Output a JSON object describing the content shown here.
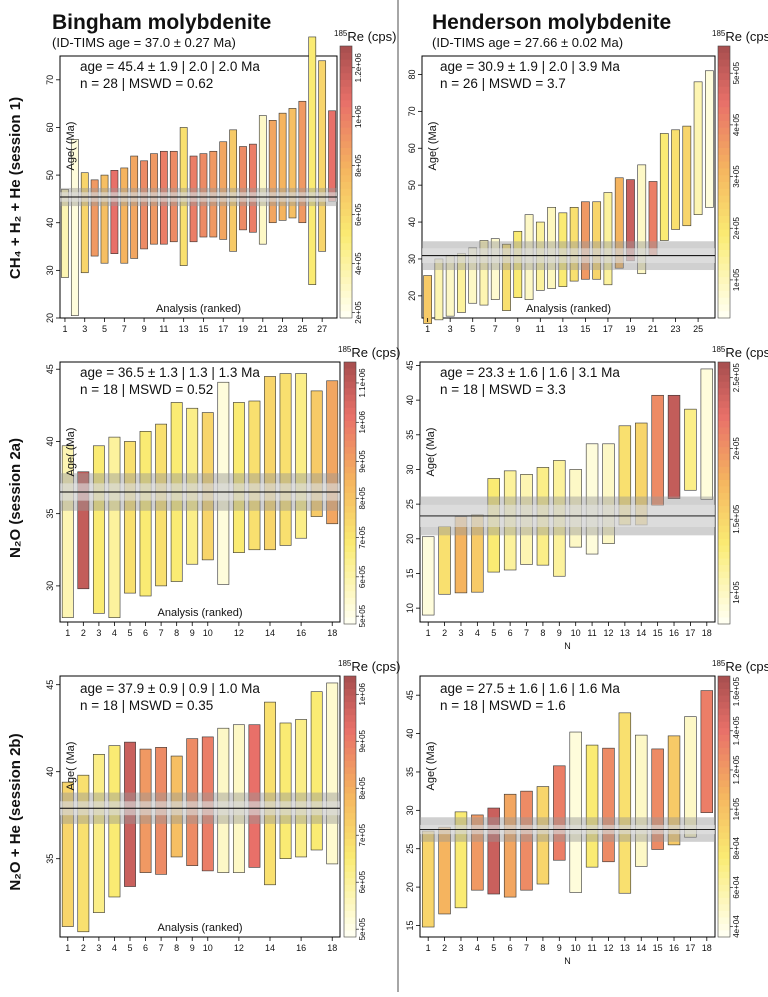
{
  "columns": [
    {
      "title": "Bingham molybdenite",
      "subtitle": "(ID-TIMS age = 37.0 ± 0.27 Ma)"
    },
    {
      "title": "Henderson molybdenite",
      "subtitle": "(ID-TIMS age = 27.66 ± 0.02 Ma)"
    }
  ],
  "rows": [
    "CH₄ + H₂ + He (session 1)",
    "N₂O (session 2a)",
    "N₂O + He (session 2b)"
  ],
  "chart_data": [
    {
      "type": "bar",
      "id": "bingham-session1",
      "ylabel": "Age( (Ma)",
      "xlabel": "Analysis (ranked)",
      "ylim": [
        20,
        75
      ],
      "yticks": [
        20,
        30,
        40,
        50,
        60,
        70
      ],
      "xticks": [
        1,
        3,
        5,
        7,
        9,
        11,
        13,
        15,
        17,
        19,
        21,
        23,
        25,
        27
      ],
      "stats": [
        "age = 45.4 ± 1.9 | 2.0 | 2.0 Ma",
        "n = 28 | MSWD = 0.62"
      ],
      "weighted_mean": 45.4,
      "band_inner": [
        44.4,
        46.4
      ],
      "band_outer": [
        43.5,
        47.3
      ],
      "colorbar": {
        "title": "Re (cps)",
        "superscript": "185",
        "ticks": [
          "2e+05",
          "4e+05",
          "6e+05",
          "8e+05",
          "1e+06",
          "1.2e+06"
        ],
        "tick_fracs": [
          0.02,
          0.2,
          0.38,
          0.56,
          0.74,
          0.92
        ]
      },
      "bars": [
        {
          "low": 28.5,
          "high": 47.0,
          "color": 0.15
        },
        {
          "low": 20.5,
          "high": 57.5,
          "color": 0.05
        },
        {
          "low": 29.5,
          "high": 50.5,
          "color": 0.4
        },
        {
          "low": 33.0,
          "high": 49.0,
          "color": 0.65
        },
        {
          "low": 31.5,
          "high": 50.0,
          "color": 0.5
        },
        {
          "low": 33.5,
          "high": 51.0,
          "color": 0.8
        },
        {
          "low": 31.5,
          "high": 51.5,
          "color": 0.55
        },
        {
          "low": 32.5,
          "high": 54.0,
          "color": 0.6
        },
        {
          "low": 34.5,
          "high": 53.0,
          "color": 0.7
        },
        {
          "low": 35.5,
          "high": 54.5,
          "color": 0.65
        },
        {
          "low": 35.5,
          "high": 55.0,
          "color": 0.75
        },
        {
          "low": 36.0,
          "high": 55.0,
          "color": 0.7
        },
        {
          "low": 31.0,
          "high": 60.0,
          "color": 0.35
        },
        {
          "low": 36.0,
          "high": 54.0,
          "color": 0.75
        },
        {
          "low": 37.0,
          "high": 54.5,
          "color": 0.7
        },
        {
          "low": 37.0,
          "high": 55.0,
          "color": 0.65
        },
        {
          "low": 36.5,
          "high": 57.0,
          "color": 0.6
        },
        {
          "low": 34.0,
          "high": 59.5,
          "color": 0.45
        },
        {
          "low": 38.5,
          "high": 56.0,
          "color": 0.7
        },
        {
          "low": 38.0,
          "high": 56.5,
          "color": 0.75
        },
        {
          "low": 35.5,
          "high": 62.5,
          "color": 0.1
        },
        {
          "low": 40.0,
          "high": 61.5,
          "color": 0.6
        },
        {
          "low": 40.5,
          "high": 63.0,
          "color": 0.55
        },
        {
          "low": 41.0,
          "high": 64.0,
          "color": 0.5
        },
        {
          "low": 40.0,
          "high": 65.5,
          "color": 0.65
        },
        {
          "low": 27.0,
          "high": 79.0,
          "color": 0.3
        },
        {
          "low": 34.0,
          "high": 74.0,
          "color": 0.4
        },
        {
          "low": 44.5,
          "high": 63.5,
          "color": 0.8
        }
      ]
    },
    {
      "type": "bar",
      "id": "henderson-session1",
      "ylabel": "Age( (Ma)",
      "xlabel": "Analysis (ranked)",
      "ylim": [
        14,
        85
      ],
      "yticks": [
        20,
        30,
        40,
        50,
        60,
        70,
        80
      ],
      "xticks": [
        1,
        3,
        5,
        7,
        9,
        11,
        13,
        15,
        17,
        19,
        21,
        23,
        25
      ],
      "stats": [
        "age = 30.9 ± 1.9 | 2.0 | 3.9 Ma",
        "n = 26 | MSWD = 3.7"
      ],
      "weighted_mean": 30.9,
      "band_inner": [
        28.9,
        32.9
      ],
      "band_outer": [
        27.0,
        34.8
      ],
      "colorbar": {
        "title": "Re (cps)",
        "superscript": "185",
        "ticks": [
          "1e+05",
          "2e+05",
          "3e+05",
          "4e+05",
          "5e+05"
        ],
        "tick_fracs": [
          0.14,
          0.33,
          0.52,
          0.71,
          0.9
        ]
      },
      "bars": [
        {
          "low": 12.5,
          "high": 25.5,
          "color": 0.45
        },
        {
          "low": 13.5,
          "high": 30.0,
          "color": 0.15
        },
        {
          "low": 14.5,
          "high": 31.0,
          "color": 0.1
        },
        {
          "low": 15.5,
          "high": 31.5,
          "color": 0.2
        },
        {
          "low": 18.0,
          "high": 33.0,
          "color": 0.1
        },
        {
          "low": 17.5,
          "high": 35.0,
          "color": 0.15
        },
        {
          "low": 19.0,
          "high": 35.5,
          "color": 0.08
        },
        {
          "low": 16.0,
          "high": 34.0,
          "color": 0.35
        },
        {
          "low": 19.5,
          "high": 37.5,
          "color": 0.3
        },
        {
          "low": 19.0,
          "high": 42.0,
          "color": 0.1
        },
        {
          "low": 21.5,
          "high": 40.0,
          "color": 0.2
        },
        {
          "low": 22.0,
          "high": 44.0,
          "color": 0.12
        },
        {
          "low": 22.5,
          "high": 42.5,
          "color": 0.3
        },
        {
          "low": 24.0,
          "high": 44.0,
          "color": 0.35
        },
        {
          "low": 24.5,
          "high": 45.5,
          "color": 0.65
        },
        {
          "low": 24.5,
          "high": 45.5,
          "color": 0.4
        },
        {
          "low": 23.0,
          "high": 48.0,
          "color": 0.2
        },
        {
          "low": 27.5,
          "high": 52.0,
          "color": 0.55
        },
        {
          "low": 29.5,
          "high": 51.5,
          "color": 0.9
        },
        {
          "low": 26.0,
          "high": 55.5,
          "color": 0.1
        },
        {
          "low": 31.0,
          "high": 51.0,
          "color": 0.75
        },
        {
          "low": 35.0,
          "high": 64.0,
          "color": 0.3
        },
        {
          "low": 38.0,
          "high": 65.0,
          "color": 0.35
        },
        {
          "low": 39.0,
          "high": 66.0,
          "color": 0.4
        },
        {
          "low": 42.0,
          "high": 78.0,
          "color": 0.15
        },
        {
          "low": 44.0,
          "high": 81.0,
          "color": 0.05
        }
      ]
    },
    {
      "type": "bar",
      "id": "bingham-session2a",
      "ylabel": "Age( (Ma)",
      "xlabel": "Analysis (ranked)",
      "ylim": [
        27.5,
        45.5
      ],
      "yticks": [
        30,
        35,
        40,
        45
      ],
      "xticks": [
        1,
        2,
        3,
        4,
        5,
        6,
        7,
        8,
        9,
        10,
        12,
        14,
        16,
        18
      ],
      "stats": [
        "age = 36.5 ± 1.3 | 1.3 | 1.3 Ma",
        "n = 18 | MSWD = 0.52"
      ],
      "weighted_mean": 36.5,
      "band_inner": [
        35.9,
        37.1
      ],
      "band_outer": [
        35.2,
        37.8
      ],
      "colorbar": {
        "title": "Re (cps)",
        "superscript": "185",
        "ticks": [
          "5e+05",
          "6e+05",
          "7e+05",
          "8e+05",
          "9e+05",
          "1e+06",
          "1.1e+06"
        ],
        "tick_fracs": [
          0.03,
          0.18,
          0.33,
          0.48,
          0.62,
          0.77,
          0.92
        ]
      },
      "bars": [
        {
          "low": 27.8,
          "high": 39.7,
          "color": 0.15
        },
        {
          "low": 29.8,
          "high": 37.9,
          "color": 0.92
        },
        {
          "low": 28.1,
          "high": 39.7,
          "color": 0.3
        },
        {
          "low": 27.8,
          "high": 40.3,
          "color": 0.2
        },
        {
          "low": 29.5,
          "high": 40.0,
          "color": 0.35
        },
        {
          "low": 29.3,
          "high": 40.7,
          "color": 0.3
        },
        {
          "low": 30.0,
          "high": 41.2,
          "color": 0.35
        },
        {
          "low": 30.3,
          "high": 42.7,
          "color": 0.3
        },
        {
          "low": 31.5,
          "high": 42.3,
          "color": 0.25
        },
        {
          "low": 31.8,
          "high": 42.0,
          "color": 0.4
        },
        {
          "low": 30.1,
          "high": 44.1,
          "color": 0.05
        },
        {
          "low": 32.3,
          "high": 42.7,
          "color": 0.3
        },
        {
          "low": 32.5,
          "high": 42.8,
          "color": 0.35
        },
        {
          "low": 32.5,
          "high": 44.5,
          "color": 0.4
        },
        {
          "low": 32.8,
          "high": 44.7,
          "color": 0.35
        },
        {
          "low": 33.3,
          "high": 44.7,
          "color": 0.25
        },
        {
          "low": 34.8,
          "high": 43.5,
          "color": 0.45
        },
        {
          "low": 34.3,
          "high": 44.2,
          "color": 0.6
        }
      ]
    },
    {
      "type": "bar",
      "id": "henderson-session2a",
      "ylabel": "Age( (Ma)",
      "xlabel": "N",
      "ylim": [
        8,
        45.5
      ],
      "yticks": [
        10,
        15,
        20,
        25,
        30,
        35,
        40,
        45
      ],
      "xticks": [
        1,
        2,
        3,
        4,
        5,
        6,
        7,
        8,
        9,
        10,
        11,
        12,
        13,
        14,
        15,
        16,
        17,
        18
      ],
      "stats": [
        "age = 23.3 ± 1.6 | 1.6 | 3.1 Ma",
        "n = 18 | MSWD = 3.3"
      ],
      "weighted_mean": 23.3,
      "band_inner": [
        21.7,
        24.9
      ],
      "band_outer": [
        20.5,
        26.1
      ],
      "colorbar": {
        "title": "Re (cps)",
        "superscript": "185",
        "ticks": [
          "1e+05",
          "1.5e+05",
          "2e+05",
          "2.5e+05"
        ],
        "tick_fracs": [
          0.12,
          0.4,
          0.67,
          0.94
        ]
      },
      "bars": [
        {
          "low": 9.0,
          "high": 20.3,
          "color": 0.05
        },
        {
          "low": 12.0,
          "high": 21.8,
          "color": 0.35
        },
        {
          "low": 12.2,
          "high": 23.2,
          "color": 0.55
        },
        {
          "low": 12.3,
          "high": 23.5,
          "color": 0.45
        },
        {
          "low": 15.2,
          "high": 28.7,
          "color": 0.3
        },
        {
          "low": 15.5,
          "high": 29.8,
          "color": 0.2
        },
        {
          "low": 16.3,
          "high": 29.3,
          "color": 0.15
        },
        {
          "low": 16.2,
          "high": 30.3,
          "color": 0.25
        },
        {
          "low": 14.6,
          "high": 31.3,
          "color": 0.2
        },
        {
          "low": 18.8,
          "high": 30.0,
          "color": 0.1
        },
        {
          "low": 17.8,
          "high": 33.7,
          "color": 0.05
        },
        {
          "low": 19.3,
          "high": 33.7,
          "color": 0.1
        },
        {
          "low": 22.0,
          "high": 36.3,
          "color": 0.35
        },
        {
          "low": 22.0,
          "high": 36.7,
          "color": 0.4
        },
        {
          "low": 24.8,
          "high": 40.7,
          "color": 0.7
        },
        {
          "low": 25.8,
          "high": 40.7,
          "color": 0.92
        },
        {
          "low": 27.0,
          "high": 38.7,
          "color": 0.25
        },
        {
          "low": 25.7,
          "high": 44.5,
          "color": 0.05
        }
      ]
    },
    {
      "type": "bar",
      "id": "bingham-session2b",
      "ylabel": "Age( (Ma)",
      "xlabel": "Analysis (ranked)",
      "ylim": [
        30.5,
        45.5
      ],
      "yticks": [
        35,
        40,
        45
      ],
      "xticks": [
        1,
        2,
        3,
        4,
        5,
        6,
        7,
        8,
        9,
        10,
        12,
        14,
        16,
        18
      ],
      "stats": [
        "age = 37.9 ± 0.9 | 0.9 | 1.0 Ma",
        "n = 18 | MSWD = 0.35"
      ],
      "weighted_mean": 37.9,
      "band_inner": [
        37.5,
        38.3
      ],
      "band_outer": [
        37.0,
        38.8
      ],
      "colorbar": {
        "title": "Re (cps)",
        "superscript": "185",
        "ticks": [
          "5e+05",
          "6e+05",
          "7e+05",
          "8e+05",
          "9e+05",
          "1e+06"
        ],
        "tick_fracs": [
          0.03,
          0.21,
          0.39,
          0.57,
          0.75,
          0.93
        ]
      },
      "bars": [
        {
          "low": 31.1,
          "high": 39.4,
          "color": 0.4
        },
        {
          "low": 30.8,
          "high": 39.8,
          "color": 0.35
        },
        {
          "low": 31.9,
          "high": 41.0,
          "color": 0.25
        },
        {
          "low": 32.8,
          "high": 41.5,
          "color": 0.3
        },
        {
          "low": 33.4,
          "high": 41.7,
          "color": 0.9
        },
        {
          "low": 34.2,
          "high": 41.3,
          "color": 0.65
        },
        {
          "low": 34.1,
          "high": 41.4,
          "color": 0.7
        },
        {
          "low": 35.1,
          "high": 40.9,
          "color": 0.5
        },
        {
          "low": 34.6,
          "high": 41.9,
          "color": 0.7
        },
        {
          "low": 34.3,
          "high": 42.0,
          "color": 0.75
        },
        {
          "low": 34.2,
          "high": 42.5,
          "color": 0.1
        },
        {
          "low": 34.2,
          "high": 42.7,
          "color": 0.1
        },
        {
          "low": 34.5,
          "high": 42.7,
          "color": 0.8
        },
        {
          "low": 33.5,
          "high": 44.0,
          "color": 0.35
        },
        {
          "low": 35.0,
          "high": 42.8,
          "color": 0.3
        },
        {
          "low": 35.1,
          "high": 43.0,
          "color": 0.25
        },
        {
          "low": 35.5,
          "high": 44.6,
          "color": 0.3
        },
        {
          "low": 34.7,
          "high": 45.1,
          "color": 0.08
        }
      ]
    },
    {
      "type": "bar",
      "id": "henderson-session2b",
      "ylabel": "Age( (Ma)",
      "xlabel": "N",
      "ylim": [
        13.5,
        47.5
      ],
      "yticks": [
        15,
        20,
        25,
        30,
        35,
        40,
        45
      ],
      "xticks": [
        1,
        2,
        3,
        4,
        5,
        6,
        7,
        8,
        9,
        10,
        11,
        12,
        13,
        14,
        15,
        16,
        17,
        18
      ],
      "stats": [
        "age = 27.5 ± 1.6 | 1.6 | 1.6 Ma",
        "n = 18 | MSWD = 1.6"
      ],
      "weighted_mean": 27.5,
      "band_inner": [
        26.9,
        28.1
      ],
      "band_outer": [
        25.9,
        29.1
      ],
      "colorbar": {
        "title": "Re (cps)",
        "superscript": "185",
        "ticks": [
          "4e+04",
          "6e+04",
          "8e+04",
          "1e+05",
          "1.2e+05",
          "1.4e+05",
          "1.6e+05"
        ],
        "tick_fracs": [
          0.04,
          0.19,
          0.34,
          0.49,
          0.64,
          0.79,
          0.94
        ]
      },
      "bars": [
        {
          "low": 14.8,
          "high": 27.3,
          "color": 0.4
        },
        {
          "low": 16.5,
          "high": 27.8,
          "color": 0.55
        },
        {
          "low": 17.3,
          "high": 29.8,
          "color": 0.3
        },
        {
          "low": 19.6,
          "high": 29.4,
          "color": 0.65
        },
        {
          "low": 19.1,
          "high": 30.3,
          "color": 0.9
        },
        {
          "low": 18.7,
          "high": 32.1,
          "color": 0.6
        },
        {
          "low": 19.6,
          "high": 32.5,
          "color": 0.7
        },
        {
          "low": 20.4,
          "high": 33.1,
          "color": 0.4
        },
        {
          "low": 23.5,
          "high": 35.8,
          "color": 0.75
        },
        {
          "low": 19.3,
          "high": 40.2,
          "color": 0.05
        },
        {
          "low": 22.6,
          "high": 38.5,
          "color": 0.3
        },
        {
          "low": 23.3,
          "high": 38.1,
          "color": 0.7
        },
        {
          "low": 19.2,
          "high": 42.7,
          "color": 0.35
        },
        {
          "low": 22.7,
          "high": 39.8,
          "color": 0.1
        },
        {
          "low": 24.9,
          "high": 38.0,
          "color": 0.7
        },
        {
          "low": 25.5,
          "high": 39.7,
          "color": 0.45
        },
        {
          "low": 26.5,
          "high": 42.2,
          "color": 0.1
        },
        {
          "low": 29.7,
          "high": 45.6,
          "color": 0.75
        }
      ]
    }
  ]
}
